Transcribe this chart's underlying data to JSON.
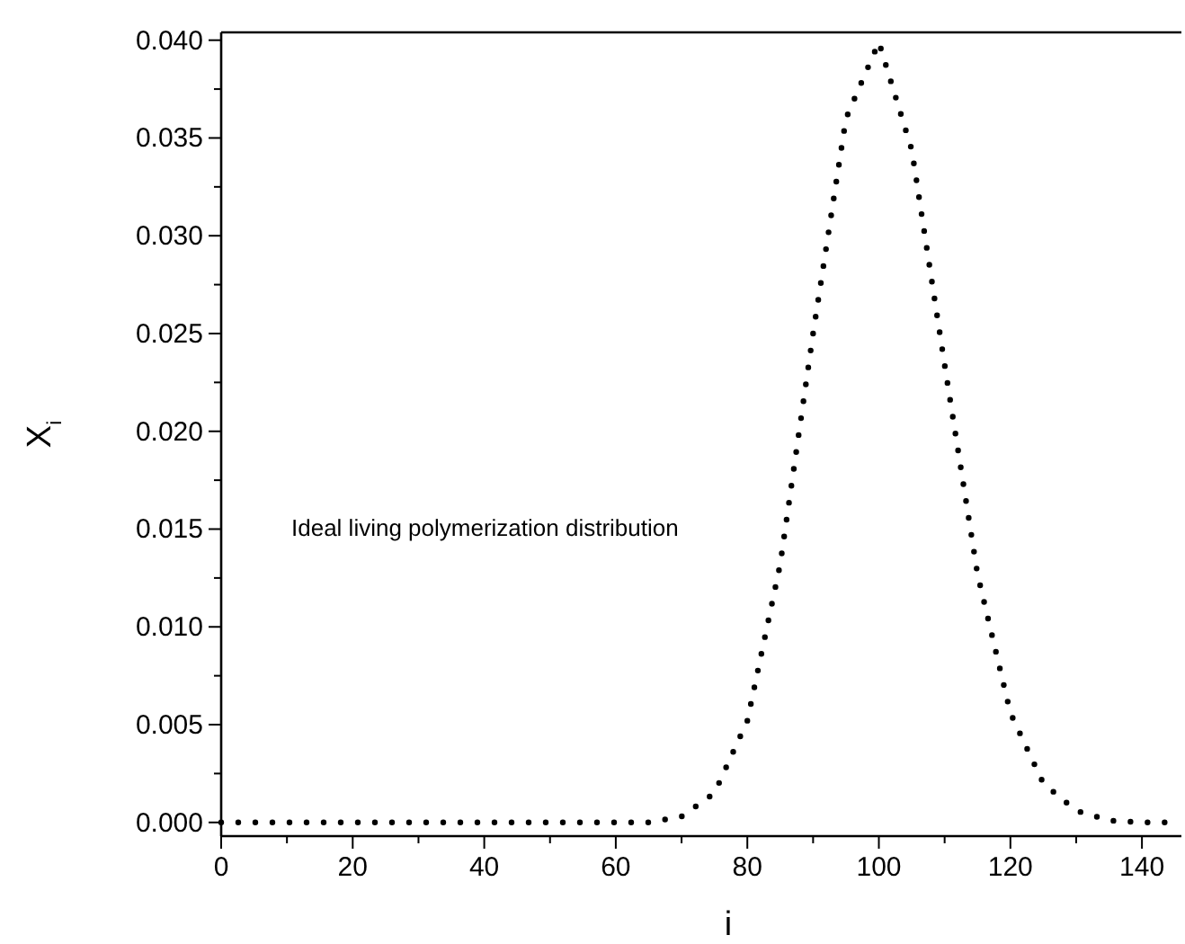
{
  "chart_data": {
    "type": "line",
    "xlabel": "i",
    "ylabel": "X$_{i}$",
    "annotations": [
      "Ideal living polymerization distribution"
    ],
    "x": [
      0,
      5,
      10,
      15,
      20,
      25,
      30,
      35,
      40,
      45,
      50,
      55,
      60,
      65,
      70,
      75,
      80,
      85,
      90,
      95,
      100,
      105,
      110,
      115,
      120,
      125,
      130,
      135,
      140,
      145
    ],
    "series": [
      {
        "color": "#000000",
        "values": [
          0,
          0,
          0,
          0,
          0,
          0,
          0,
          0,
          0,
          0,
          0,
          0,
          0,
          0,
          0.0003,
          0.0015,
          0.0052,
          0.0132,
          0.025,
          0.036,
          0.0399,
          0.0344,
          0.0234,
          0.0127,
          0.0056,
          0.002,
          0.0006,
          0.0001,
          0,
          0
        ]
      }
    ],
    "line_style": "dotted",
    "marker": "none",
    "xlim": [
      0,
      146
    ],
    "ylim": [
      -0.0007,
      0.0404
    ],
    "xticks": [
      0,
      {
        "value": 10,
        "label": null
      },
      20,
      {
        "value": 30,
        "label": null
      },
      40,
      {
        "value": 50,
        "label": null
      },
      60,
      {
        "value": 70,
        "label": null
      },
      80,
      {
        "value": 90,
        "label": null
      },
      100,
      {
        "value": 110,
        "label": null
      },
      120,
      {
        "value": 130,
        "label": null
      },
      140
    ],
    "yticks": [
      {
        "value": 0,
        "label": "0.000"
      },
      {
        "value": 0.0025,
        "label": null
      },
      {
        "value": 0.005,
        "label": "0.005"
      },
      {
        "value": 0.0075,
        "label": null
      },
      {
        "value": 0.01,
        "label": "0.010"
      },
      {
        "value": 0.0125,
        "label": null
      },
      {
        "value": 0.015,
        "label": "0.015"
      },
      {
        "value": 0.0175,
        "label": null
      },
      {
        "value": 0.02,
        "label": "0.020"
      },
      {
        "value": 0.0225,
        "label": null
      },
      {
        "value": 0.025,
        "label": "0.025"
      },
      {
        "value": 0.0275,
        "label": null
      },
      {
        "value": 0.03,
        "label": "0.030"
      },
      {
        "value": 0.0325,
        "label": null
      },
      {
        "value": 0.035,
        "label": "0.035"
      },
      {
        "value": 0.0375,
        "label": null
      },
      {
        "value": 0.04,
        "label": "0.040"
      }
    ]
  }
}
